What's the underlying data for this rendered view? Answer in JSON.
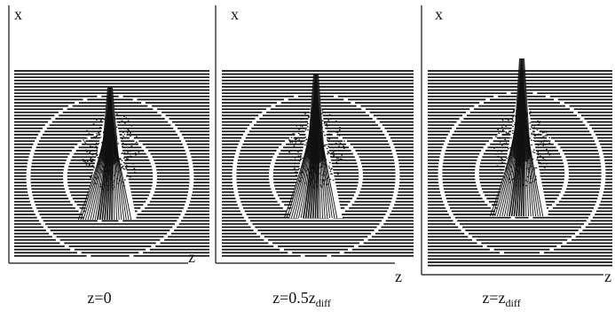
{
  "panels": [
    {
      "axis_vertical": "x",
      "axis_horizontal": "z",
      "caption": {
        "main": "z=0",
        "sub": ""
      },
      "peak_height": 0.78
    },
    {
      "axis_vertical": "x",
      "axis_horizontal": "z",
      "caption": {
        "main": "z=0.5z",
        "sub": "diff"
      },
      "peak_height": 0.88
    },
    {
      "axis_vertical": "x",
      "axis_horizontal": "z",
      "caption": {
        "main": "z=z",
        "sub": "diff"
      },
      "peak_height": 1.0
    }
  ],
  "colors": {
    "ink": "#111111",
    "background": "#ffffff"
  }
}
